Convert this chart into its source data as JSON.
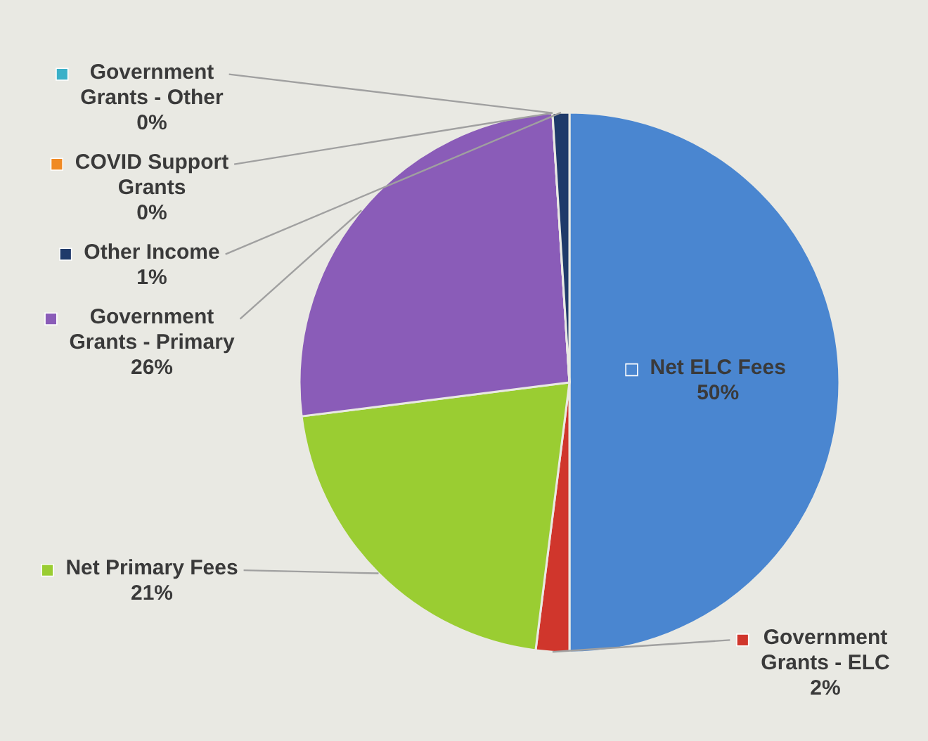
{
  "chart_data": {
    "type": "pie",
    "legend": "left",
    "value_labels": [
      "50%",
      "2%",
      "21%",
      "26%",
      "0%",
      "0%",
      "1%"
    ],
    "categories": [
      "Net ELC Fees",
      "Government Grants - ELC",
      "Net Primary Fees",
      "Government Grants - Primary",
      "COVID Support Grants",
      "Government Grants - Other",
      "Other Income"
    ],
    "values": [
      50,
      2,
      21,
      26,
      0,
      0,
      1
    ],
    "colors": [
      "#4a86d0",
      "#d0362c",
      "#9acd32",
      "#8a5cb8",
      "#f08a24",
      "#3ab0c8",
      "#1f3a6a"
    ]
  }
}
